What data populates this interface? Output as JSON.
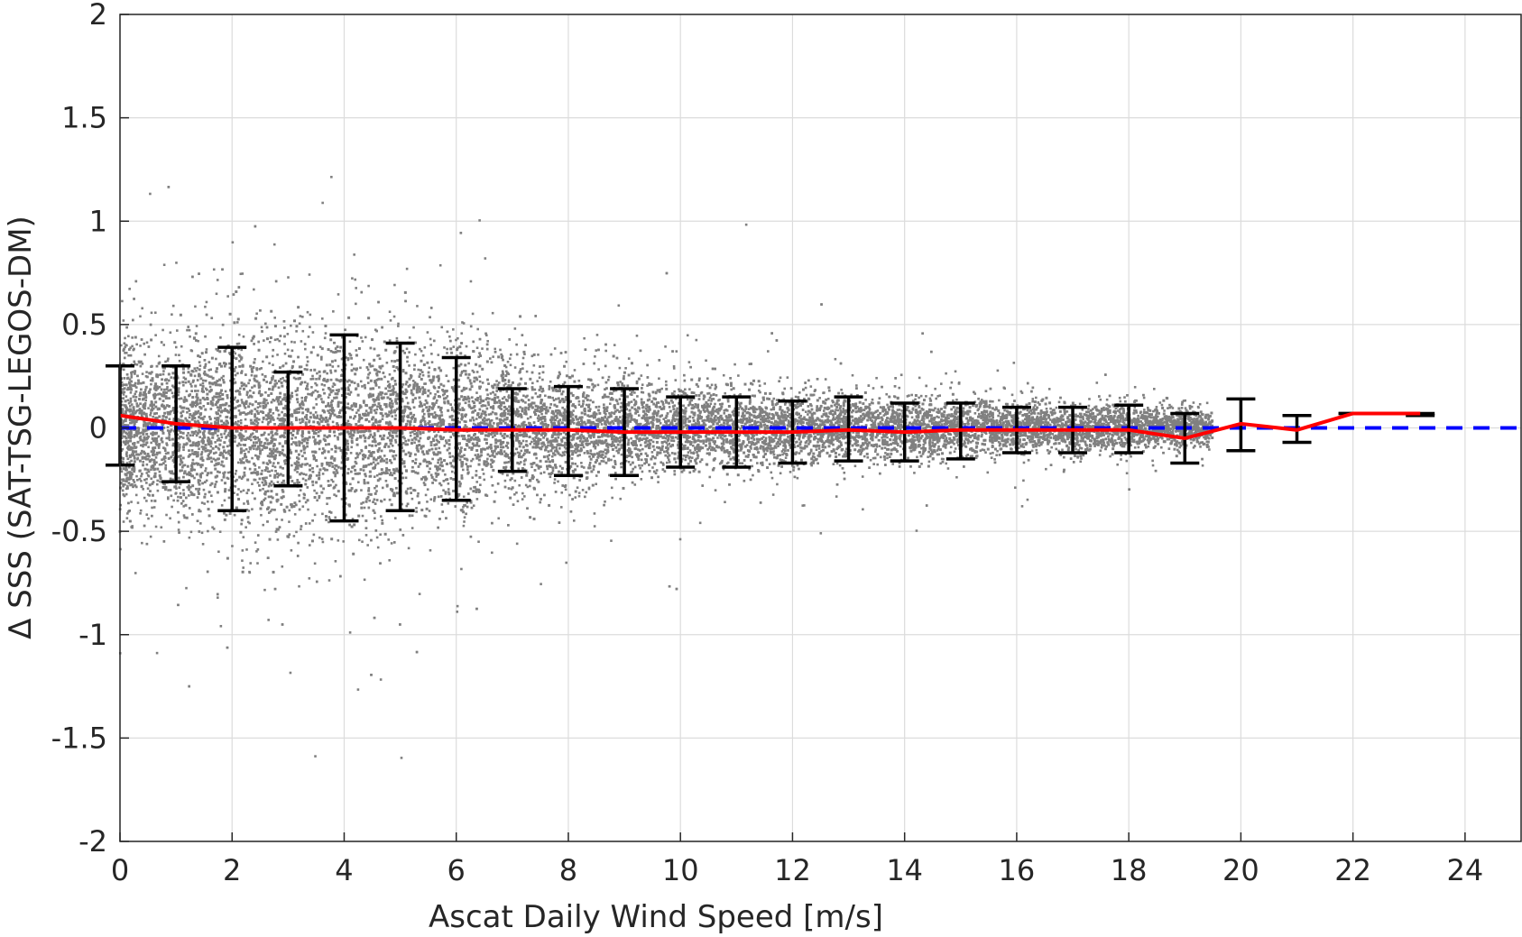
{
  "chart_data": {
    "type": "scatter",
    "title": "",
    "xlabel": "Ascat Daily Wind Speed [m/s]",
    "ylabel": "Δ SSS (SAT-TSG-LEGOS-DM)",
    "xlim": [
      0,
      25
    ],
    "ylim": [
      -2,
      2
    ],
    "x_ticks": [
      "0",
      "2",
      "4",
      "6",
      "8",
      "10",
      "12",
      "14",
      "16",
      "18",
      "20",
      "22",
      "24"
    ],
    "y_ticks": [
      "2",
      "1.5",
      "1",
      "0.5",
      "0",
      "-0.5",
      "-1",
      "-1.5",
      "-2"
    ],
    "grid": true,
    "scatter_color": "#808080",
    "mean_line_color": "#ff0000",
    "zero_line_color": "#0000ff",
    "errorbar_color": "#000000",
    "scatter_density": [
      {
        "x": 0,
        "std": 0.2
      },
      {
        "x": 2,
        "std": 0.28
      },
      {
        "x": 4,
        "std": 0.27
      },
      {
        "x": 6,
        "std": 0.22
      },
      {
        "x": 8,
        "std": 0.16
      },
      {
        "x": 10,
        "std": 0.12
      },
      {
        "x": 12,
        "std": 0.1
      },
      {
        "x": 14,
        "std": 0.085
      },
      {
        "x": 16,
        "std": 0.07
      },
      {
        "x": 18,
        "std": 0.06
      },
      {
        "x": 19.5,
        "std": 0.05
      }
    ],
    "bins": [
      {
        "x": 0,
        "mean": 0.06,
        "lower": -0.18,
        "upper": 0.3
      },
      {
        "x": 1,
        "mean": 0.02,
        "lower": -0.26,
        "upper": 0.3
      },
      {
        "x": 2,
        "mean": 0.0,
        "lower": -0.4,
        "upper": 0.39
      },
      {
        "x": 3,
        "mean": 0.0,
        "lower": -0.28,
        "upper": 0.27
      },
      {
        "x": 4,
        "mean": 0.0,
        "lower": -0.45,
        "upper": 0.45
      },
      {
        "x": 5,
        "mean": 0.0,
        "lower": -0.4,
        "upper": 0.41
      },
      {
        "x": 6,
        "mean": -0.01,
        "lower": -0.35,
        "upper": 0.34
      },
      {
        "x": 7,
        "mean": -0.01,
        "lower": -0.21,
        "upper": 0.19
      },
      {
        "x": 8,
        "mean": -0.01,
        "lower": -0.23,
        "upper": 0.2
      },
      {
        "x": 9,
        "mean": -0.02,
        "lower": -0.23,
        "upper": 0.19
      },
      {
        "x": 10,
        "mean": -0.02,
        "lower": -0.19,
        "upper": 0.15
      },
      {
        "x": 11,
        "mean": -0.02,
        "lower": -0.19,
        "upper": 0.15
      },
      {
        "x": 12,
        "mean": -0.02,
        "lower": -0.17,
        "upper": 0.13
      },
      {
        "x": 13,
        "mean": -0.01,
        "lower": -0.16,
        "upper": 0.15
      },
      {
        "x": 14,
        "mean": -0.02,
        "lower": -0.16,
        "upper": 0.12
      },
      {
        "x": 15,
        "mean": -0.01,
        "lower": -0.15,
        "upper": 0.12
      },
      {
        "x": 16,
        "mean": -0.01,
        "lower": -0.12,
        "upper": 0.1
      },
      {
        "x": 17,
        "mean": -0.01,
        "lower": -0.12,
        "upper": 0.1
      },
      {
        "x": 18,
        "mean": -0.01,
        "lower": -0.12,
        "upper": 0.11
      },
      {
        "x": 19,
        "mean": -0.05,
        "lower": -0.17,
        "upper": 0.07
      },
      {
        "x": 20,
        "mean": 0.02,
        "lower": -0.11,
        "upper": 0.14
      },
      {
        "x": 21,
        "mean": -0.01,
        "lower": -0.07,
        "upper": 0.06
      },
      {
        "x": 22,
        "mean": 0.07,
        "lower": 0.07,
        "upper": 0.07
      },
      {
        "x": 23.2,
        "mean": 0.07,
        "lower": 0.06,
        "upper": 0.07
      }
    ]
  }
}
